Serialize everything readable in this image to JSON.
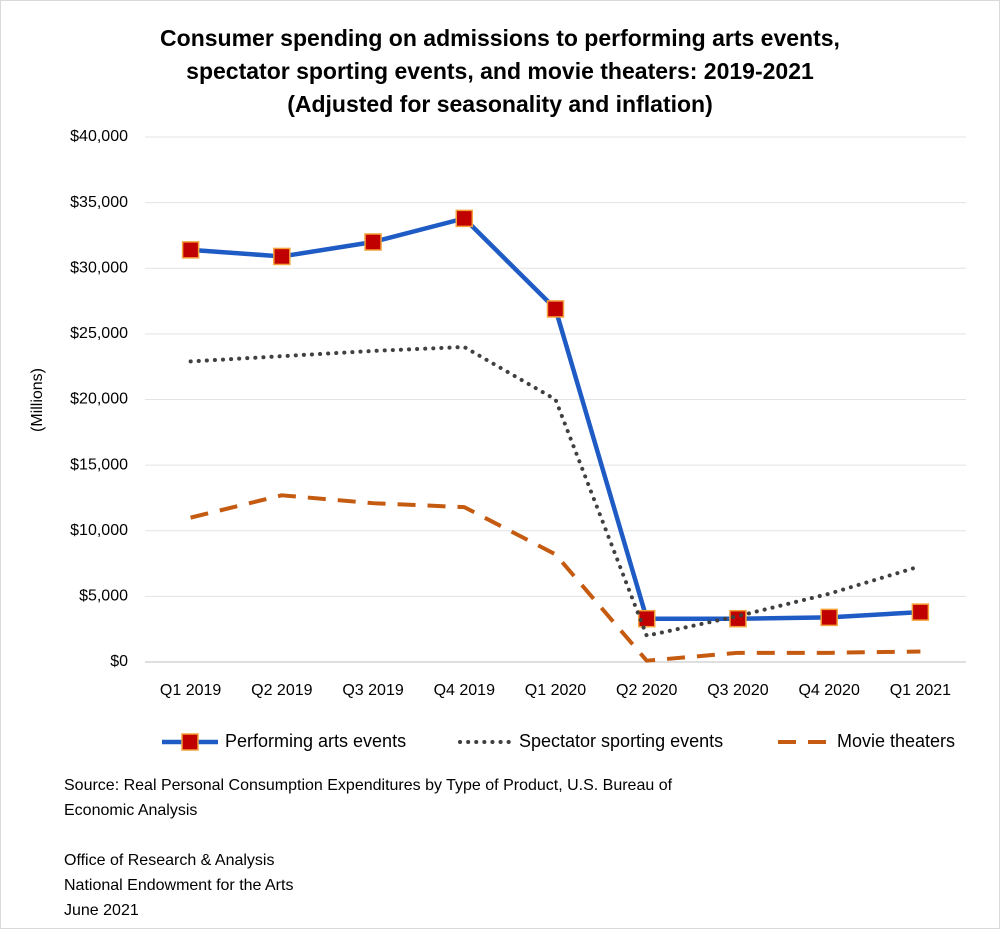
{
  "chart_data": {
    "type": "line",
    "title": [
      "Consumer spending on admissions to performing arts events,",
      "spectator sporting events, and movie theaters: 2019-2021",
      "(Adjusted for seasonality and inflation)"
    ],
    "y_label": "(Millions)",
    "categories": [
      "Q1 2019",
      "Q2 2019",
      "Q3 2019",
      "Q4 2019",
      "Q1 2020",
      "Q2 2020",
      "Q3 2020",
      "Q4 2020",
      "Q1 2021"
    ],
    "series": [
      {
        "name": "Performing arts events",
        "color": "#1f5bc4",
        "style": "solid",
        "marker": "square",
        "values": [
          31400,
          30900,
          32000,
          33800,
          26900,
          3300,
          3300,
          3400,
          3800
        ]
      },
      {
        "name": "Spectator sporting events",
        "color": "#404040",
        "style": "dotted",
        "values": [
          22900,
          23300,
          23700,
          24000,
          20000,
          2000,
          3500,
          5200,
          7300
        ]
      },
      {
        "name": "Movie theaters",
        "color": "#c55a11",
        "style": "dashed",
        "values": [
          11000,
          12700,
          12100,
          11800,
          8200,
          100,
          700,
          700,
          800
        ]
      }
    ],
    "ylim": [
      0,
      40000
    ],
    "yticks": [
      {
        "value": 0,
        "label": "$0"
      },
      {
        "value": 5000,
        "label": "$5,000"
      },
      {
        "value": 10000,
        "label": "$10,000"
      },
      {
        "value": 15000,
        "label": "$15,000"
      },
      {
        "value": 20000,
        "label": "$20,000"
      },
      {
        "value": 25000,
        "label": "$25,000"
      },
      {
        "value": 30000,
        "label": "$30,000"
      },
      {
        "value": 35000,
        "label": "$35,000"
      },
      {
        "value": 40000,
        "label": "$40,000"
      }
    ],
    "grid": true,
    "legend": "bottom",
    "notes": [
      "Source: Real Personal Consumption Expenditures by Type of Product, U.S. Bureau of",
      "Economic Analysis",
      "",
      "Office of Research & Analysis",
      "National Endowment for the Arts",
      "June 2021"
    ]
  }
}
